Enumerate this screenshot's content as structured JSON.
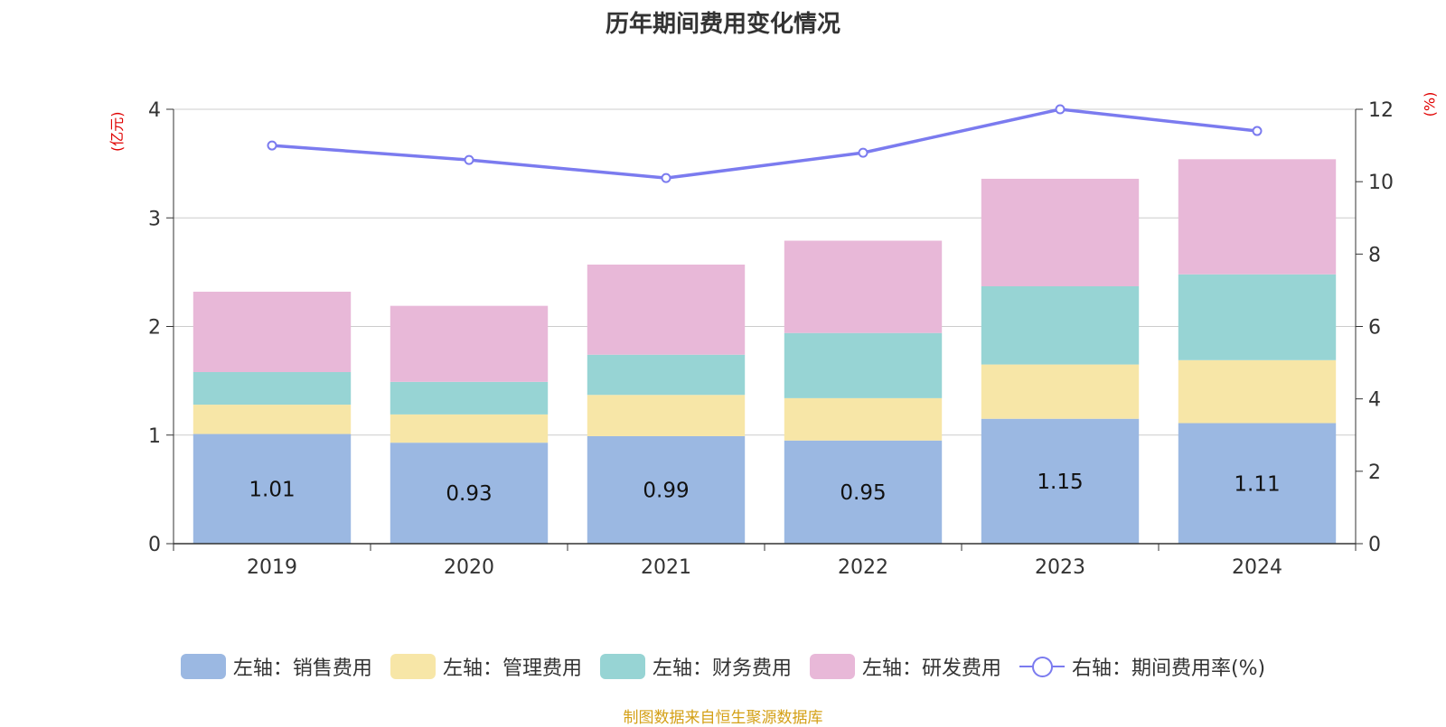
{
  "title": "历年期间费用变化情况",
  "left_unit": "(亿元)",
  "right_unit": "(%)",
  "source": "制图数据来自恒生聚源数据库",
  "legend": [
    {
      "label": "左轴：销售费用",
      "color": "#9bb8e2",
      "kind": "box"
    },
    {
      "label": "左轴：管理费用",
      "color": "#f7e6a7",
      "kind": "box"
    },
    {
      "label": "左轴：财务费用",
      "color": "#97d4d4",
      "kind": "box"
    },
    {
      "label": "左轴：研发费用",
      "color": "#e8b8d8",
      "kind": "box"
    },
    {
      "label": "右轴：期间费用率(%)",
      "color": "#7b7bef",
      "kind": "line"
    }
  ],
  "chart_data": {
    "type": "bar",
    "stacked": true,
    "categories": [
      "2019",
      "2020",
      "2021",
      "2022",
      "2023",
      "2024"
    ],
    "series": [
      {
        "name": "左轴：销售费用",
        "axis": "left",
        "color": "#9bb8e2",
        "values": [
          1.01,
          0.93,
          0.99,
          0.95,
          1.15,
          1.11
        ],
        "show_labels": true
      },
      {
        "name": "左轴：管理费用",
        "axis": "left",
        "color": "#f7e6a7",
        "values": [
          0.27,
          0.26,
          0.38,
          0.39,
          0.5,
          0.58
        ],
        "show_labels": false
      },
      {
        "name": "左轴：财务费用",
        "axis": "left",
        "color": "#97d4d4",
        "values": [
          0.3,
          0.3,
          0.37,
          0.6,
          0.72,
          0.79
        ],
        "show_labels": false
      },
      {
        "name": "左轴：研发费用",
        "axis": "left",
        "color": "#e8b8d8",
        "values": [
          0.74,
          0.7,
          0.83,
          0.85,
          0.99,
          1.06
        ],
        "show_labels": false
      },
      {
        "name": "右轴：期间费用率(%)",
        "axis": "right",
        "type": "line",
        "color": "#7b7bef",
        "values": [
          11.0,
          10.6,
          10.1,
          10.8,
          12.0,
          11.4
        ]
      }
    ],
    "left_axis": {
      "ylim": [
        0,
        4
      ],
      "ticks": [
        0,
        1,
        2,
        3,
        4
      ]
    },
    "right_axis": {
      "ylim": [
        0,
        12
      ],
      "ticks": [
        0,
        2,
        4,
        6,
        8,
        10,
        12
      ]
    },
    "grid": true,
    "legend_position": "bottom"
  }
}
